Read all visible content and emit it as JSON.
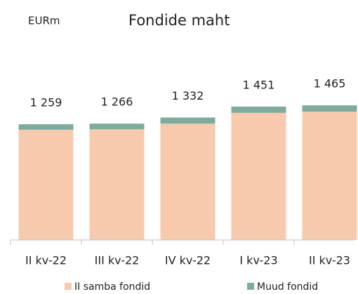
{
  "chart_data": {
    "type": "stacked_bar",
    "unit_label": "EURm",
    "title": "Fondide maht",
    "categories": [
      "II kv-22",
      "III kv-22",
      "IV kv-22",
      "I kv-23",
      "II kv-23"
    ],
    "series": [
      {
        "name": "II samba fondid",
        "color": "#f7caae",
        "values": [
          1199,
          1204,
          1265,
          1383,
          1395
        ]
      },
      {
        "name": "Muud fondid",
        "color": "#7fab9f",
        "values": [
          60,
          62,
          67,
          68,
          70
        ]
      }
    ],
    "totals": [
      1259,
      1266,
      1332,
      1451,
      1465
    ],
    "total_labels": [
      "1 259",
      "1 266",
      "1 332",
      "1 451",
      "1 465"
    ],
    "legend": "bottom"
  }
}
